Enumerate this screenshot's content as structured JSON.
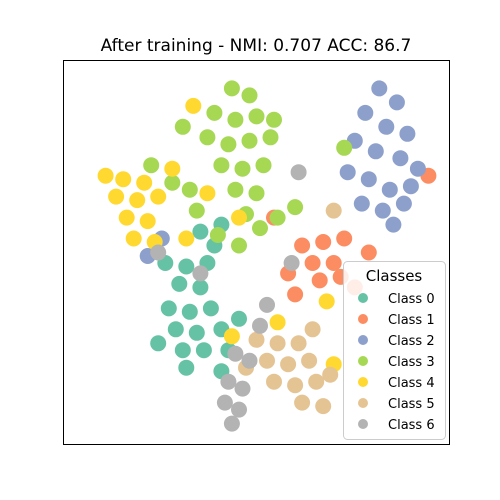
{
  "chart_data": {
    "type": "scatter",
    "title": "After training - NMI: 0.707 ACC: 86.7",
    "xlabel": "",
    "ylabel": "",
    "axes_visible": false,
    "xlim": [
      -0.05,
      1.05
    ],
    "ylim": [
      -0.05,
      1.05
    ],
    "grid": false,
    "legend": {
      "title": "Classes",
      "placement": "right",
      "entries": [
        "Class 0",
        "Class 1",
        "Class 2",
        "Class 3",
        "Class 4",
        "Class 5",
        "Class 6"
      ]
    },
    "series": [
      {
        "name": "Class 0",
        "color": "#66c2a5",
        "points": [
          [
            0.24,
            0.47
          ],
          [
            0.3,
            0.46
          ],
          [
            0.36,
            0.47
          ],
          [
            0.28,
            0.41
          ],
          [
            0.34,
            0.4
          ],
          [
            0.25,
            0.34
          ],
          [
            0.31,
            0.33
          ],
          [
            0.37,
            0.34
          ],
          [
            0.27,
            0.28
          ],
          [
            0.33,
            0.27
          ],
          [
            0.4,
            0.28
          ],
          [
            0.29,
            0.22
          ],
          [
            0.35,
            0.22
          ],
          [
            0.42,
            0.22
          ],
          [
            0.3,
            0.17
          ],
          [
            0.4,
            0.16
          ],
          [
            0.38,
            0.52
          ],
          [
            0.34,
            0.56
          ],
          [
            0.4,
            0.58
          ],
          [
            0.22,
            0.24
          ],
          [
            0.45,
            0.31
          ]
        ]
      },
      {
        "name": "Class 1",
        "color": "#fc8d62",
        "points": [
          [
            0.63,
            0.52
          ],
          [
            0.69,
            0.53
          ],
          [
            0.75,
            0.54
          ],
          [
            0.66,
            0.47
          ],
          [
            0.72,
            0.47
          ],
          [
            0.68,
            0.42
          ],
          [
            0.74,
            0.43
          ],
          [
            0.59,
            0.44
          ],
          [
            0.82,
            0.5
          ],
          [
            0.78,
            0.4
          ],
          [
            0.61,
            0.38
          ],
          [
            0.99,
            0.72
          ],
          [
            0.55,
            0.6
          ]
        ]
      },
      {
        "name": "Class 2",
        "color": "#8da0cb",
        "points": [
          [
            0.85,
            0.97
          ],
          [
            0.9,
            0.93
          ],
          [
            0.81,
            0.9
          ],
          [
            0.87,
            0.86
          ],
          [
            0.93,
            0.84
          ],
          [
            0.78,
            0.82
          ],
          [
            0.84,
            0.79
          ],
          [
            0.91,
            0.77
          ],
          [
            0.96,
            0.74
          ],
          [
            0.76,
            0.73
          ],
          [
            0.82,
            0.71
          ],
          [
            0.88,
            0.68
          ],
          [
            0.94,
            0.69
          ],
          [
            0.8,
            0.64
          ],
          [
            0.86,
            0.62
          ],
          [
            0.92,
            0.64
          ],
          [
            0.89,
            0.58
          ],
          [
            0.19,
            0.49
          ],
          [
            0.23,
            0.54
          ]
        ]
      },
      {
        "name": "Class 3",
        "color": "#a6d854",
        "points": [
          [
            0.43,
            0.97
          ],
          [
            0.48,
            0.95
          ],
          [
            0.38,
            0.9
          ],
          [
            0.44,
            0.88
          ],
          [
            0.5,
            0.89
          ],
          [
            0.36,
            0.83
          ],
          [
            0.42,
            0.81
          ],
          [
            0.48,
            0.82
          ],
          [
            0.54,
            0.83
          ],
          [
            0.4,
            0.75
          ],
          [
            0.46,
            0.74
          ],
          [
            0.52,
            0.75
          ],
          [
            0.44,
            0.68
          ],
          [
            0.5,
            0.67
          ],
          [
            0.47,
            0.61
          ],
          [
            0.26,
            0.7
          ],
          [
            0.31,
            0.68
          ],
          [
            0.33,
            0.62
          ],
          [
            0.39,
            0.55
          ],
          [
            0.45,
            0.52
          ],
          [
            0.51,
            0.57
          ],
          [
            0.56,
            0.6
          ],
          [
            0.61,
            0.63
          ],
          [
            0.29,
            0.86
          ],
          [
            0.75,
            0.8
          ],
          [
            0.55,
            0.88
          ],
          [
            0.2,
            0.75
          ]
        ]
      },
      {
        "name": "Class 4",
        "color": "#ffd92f",
        "points": [
          [
            0.07,
            0.72
          ],
          [
            0.12,
            0.71
          ],
          [
            0.18,
            0.7
          ],
          [
            0.1,
            0.66
          ],
          [
            0.16,
            0.65
          ],
          [
            0.22,
            0.66
          ],
          [
            0.13,
            0.6
          ],
          [
            0.19,
            0.59
          ],
          [
            0.15,
            0.54
          ],
          [
            0.21,
            0.53
          ],
          [
            0.3,
            0.54
          ],
          [
            0.26,
            0.74
          ],
          [
            0.36,
            0.67
          ],
          [
            0.45,
            0.6
          ],
          [
            0.32,
            0.92
          ],
          [
            0.7,
            0.36
          ],
          [
            0.43,
            0.26
          ],
          [
            0.56,
            0.3
          ],
          [
            0.72,
            0.18
          ]
        ]
      },
      {
        "name": "Class 5",
        "color": "#e5c494",
        "points": [
          [
            0.5,
            0.25
          ],
          [
            0.56,
            0.24
          ],
          [
            0.62,
            0.24
          ],
          [
            0.53,
            0.19
          ],
          [
            0.59,
            0.18
          ],
          [
            0.65,
            0.19
          ],
          [
            0.55,
            0.13
          ],
          [
            0.61,
            0.12
          ],
          [
            0.67,
            0.13
          ],
          [
            0.63,
            0.07
          ],
          [
            0.69,
            0.06
          ],
          [
            0.71,
            0.15
          ],
          [
            0.47,
            0.17
          ],
          [
            0.72,
            0.62
          ],
          [
            0.66,
            0.28
          ]
        ]
      },
      {
        "name": "Class 6",
        "color": "#b3b3b3",
        "points": [
          [
            0.42,
            0.13
          ],
          [
            0.46,
            0.11
          ],
          [
            0.41,
            0.07
          ],
          [
            0.45,
            0.05
          ],
          [
            0.43,
            0.01
          ],
          [
            0.48,
            0.19
          ],
          [
            0.44,
            0.21
          ],
          [
            0.51,
            0.29
          ],
          [
            0.53,
            0.35
          ],
          [
            0.6,
            0.47
          ],
          [
            0.34,
            0.44
          ],
          [
            0.62,
            0.73
          ],
          [
            0.22,
            0.5
          ]
        ]
      }
    ]
  }
}
